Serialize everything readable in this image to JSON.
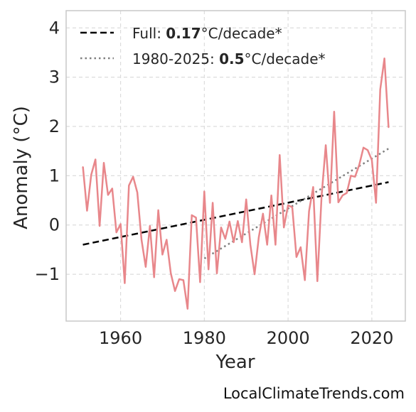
{
  "chart_data": {
    "type": "line",
    "xlabel": "Year",
    "ylabel": "Anomaly (°C)",
    "xlim": [
      1947,
      2028
    ],
    "ylim": [
      -1.95,
      4.35
    ],
    "xticks": [
      1960,
      1980,
      2000,
      2020
    ],
    "xtick_labels": [
      "1960",
      "1980",
      "2000",
      "2020"
    ],
    "yticks": [
      -1,
      0,
      1,
      2,
      3,
      4
    ],
    "ytick_labels": [
      "−1",
      "0",
      "1",
      "2",
      "3",
      "4"
    ],
    "grid": true,
    "legend_position": "top-left",
    "colors": {
      "series": "#e8878b",
      "full_trend": "#000000",
      "recent_trend": "#808080",
      "grid": "#dcdcdc",
      "frame": "#c8c8c8"
    },
    "series": [
      {
        "x": [
          1951,
          1952,
          1953,
          1954,
          1955,
          1956,
          1957,
          1958,
          1959,
          1960,
          1961,
          1962,
          1963,
          1964,
          1965,
          1966,
          1967,
          1968,
          1969,
          1970,
          1971,
          1972,
          1973,
          1974,
          1975,
          1976,
          1977,
          1978,
          1979,
          1980,
          1981,
          1982,
          1983,
          1984,
          1985,
          1986,
          1987,
          1988,
          1989,
          1990,
          1991,
          1992,
          1993,
          1994,
          1995,
          1996,
          1997,
          1998,
          1999,
          2000,
          2001,
          2002,
          2003,
          2004,
          2005,
          2006,
          2007,
          2008,
          2009,
          2010,
          2011,
          2012,
          2013,
          2014,
          2015,
          2016,
          2017,
          2018,
          2019,
          2020,
          2021,
          2022,
          2023,
          2024
        ],
        "values": [
          1.18,
          0.29,
          1.02,
          1.33,
          -0.02,
          1.26,
          0.61,
          0.74,
          -0.15,
          0.02,
          -1.18,
          0.8,
          0.98,
          0.66,
          -0.3,
          -0.85,
          -0.02,
          -1.06,
          0.3,
          -0.6,
          -0.3,
          -0.98,
          -1.34,
          -1.1,
          -1.12,
          -1.7,
          0.2,
          0.15,
          -1.16,
          0.68,
          -0.9,
          0.45,
          -0.98,
          -0.05,
          -0.28,
          0.07,
          -0.35,
          0.08,
          -0.35,
          0.52,
          -0.4,
          -1.0,
          -0.25,
          0.23,
          -0.4,
          0.6,
          -0.4,
          1.42,
          -0.05,
          0.4,
          0.36,
          -0.65,
          -0.45,
          -1.12,
          0.28,
          0.77,
          -1.14,
          0.58,
          1.62,
          0.45,
          2.3,
          0.46,
          0.6,
          0.65,
          1.0,
          0.98,
          1.22,
          1.57,
          1.52,
          1.32,
          0.45,
          2.75,
          3.38,
          1.98
        ]
      }
    ],
    "trends": [
      {
        "legend_prefix": "Full: ",
        "rate": "0.17",
        "unit": "°C/decade*",
        "style": "dashed",
        "x": [
          1951,
          2024
        ],
        "values": [
          -0.4,
          0.87
        ]
      },
      {
        "legend_prefix": "1980-2025: ",
        "rate": "0.5",
        "unit": "°C/decade*",
        "style": "dotted",
        "x": [
          1980,
          2024
        ],
        "values": [
          -0.68,
          1.55
        ]
      }
    ]
  },
  "footer": {
    "watermark": "LocalClimateTrends.com"
  }
}
